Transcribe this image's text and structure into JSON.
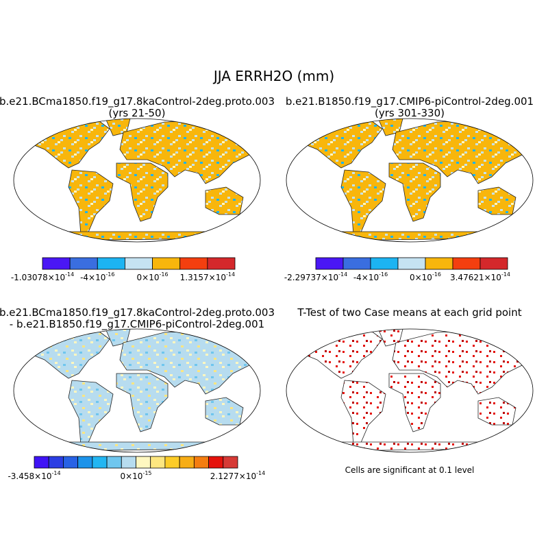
{
  "title": "JJA ERRH2O (mm)",
  "panels": [
    {
      "title": [
        "b.e21.BCma1850.f19_g17.8kaControl-2deg.proto.003",
        "(yrs 21-50)"
      ],
      "colorbar": {
        "colors": [
          "#4a17f5",
          "#3a6ee0",
          "#1cb4f2",
          "#c5e3f2",
          "#f8b60c",
          "#f43f0f",
          "#d4282b"
        ],
        "labels": [
          {
            "base": "-1.03078×10",
            "exp": "-14"
          },
          {
            "base": "-4×10",
            "exp": "-16"
          },
          {
            "base": "0×10",
            "exp": "-16"
          },
          {
            "base": "1.3157×10",
            "exp": "-14"
          }
        ]
      }
    },
    {
      "title": [
        "b.e21.B1850.f19_g17.CMIP6-piControl-2deg.001",
        "(yrs 301-330)"
      ],
      "colorbar": {
        "colors": [
          "#4a17f5",
          "#3a6ee0",
          "#1cb4f2",
          "#c5e3f2",
          "#f8b60c",
          "#f43f0f",
          "#d4282b"
        ],
        "labels": [
          {
            "base": "-2.29737×10",
            "exp": "-14"
          },
          {
            "base": "-4×10",
            "exp": "-16"
          },
          {
            "base": "0×10",
            "exp": "-16"
          },
          {
            "base": "3.47621×10",
            "exp": "-14"
          }
        ]
      }
    },
    {
      "title": [
        "b.e21.BCma1850.f19_g17.8kaControl-2deg.proto.003",
        "- b.e21.B1850.f19_g17.CMIP6-piControl-2deg.001"
      ],
      "colorbar": {
        "colors": [
          "#3f13f5",
          "#2b3ee3",
          "#2862e5",
          "#1c93ea",
          "#22b6f2",
          "#6fc6ee",
          "#b7dcef",
          "#fff7c0",
          "#fde680",
          "#fccc28",
          "#f7ad15",
          "#f47d10",
          "#e5120c",
          "#d63a36"
        ],
        "labels": [
          {
            "base": "-3.458×10",
            "exp": "-14"
          },
          {
            "base": "0×10",
            "exp": "-15"
          },
          {
            "base": "2.1277×10",
            "exp": "-14"
          }
        ]
      }
    },
    {
      "title": [
        "T-Test of two Case means at each grid point"
      ],
      "note": "Cells are significant at 0.1 level"
    }
  ]
}
